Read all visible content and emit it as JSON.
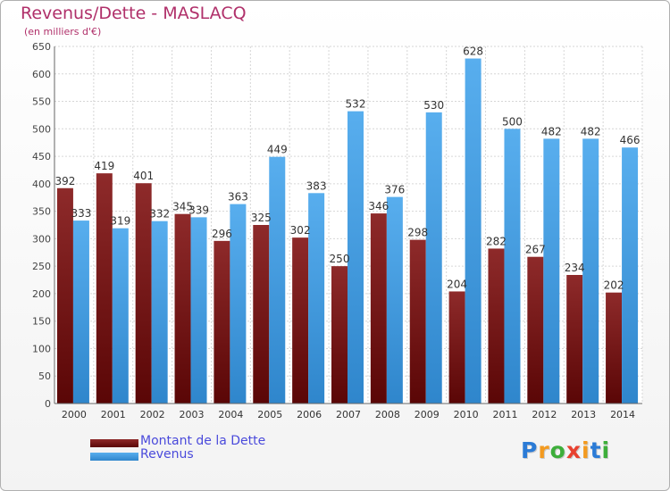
{
  "title": "Revenus/Dette - MASLACQ",
  "subtitle": "(en milliers d'€)",
  "logo": {
    "letters": [
      "P",
      "r",
      "o",
      "x",
      "i",
      "t",
      "i"
    ],
    "colors": [
      "#2b7bd6",
      "#f39a1f",
      "#3dae3a",
      "#e8412f",
      "#f39a1f",
      "#2b7bd6",
      "#3dae3a"
    ]
  },
  "colors": {
    "dette": "#7a1414",
    "revenus": "#4aa3e6",
    "title": "#b0306a",
    "legend_text": "#4a4adb"
  },
  "legend": {
    "dette": "Montant de la Dette",
    "revenus": "Revenus"
  },
  "chart_data": {
    "type": "bar",
    "categories": [
      "2000",
      "2001",
      "2002",
      "2003",
      "2004",
      "2005",
      "2006",
      "2007",
      "2008",
      "2009",
      "2010",
      "2011",
      "2012",
      "2013",
      "2014"
    ],
    "series": [
      {
        "name": "Montant de la Dette",
        "values": [
          392,
          419,
          401,
          345,
          296,
          325,
          302,
          250,
          346,
          298,
          204,
          282,
          267,
          234,
          202
        ]
      },
      {
        "name": "Revenus",
        "values": [
          333,
          319,
          332,
          339,
          363,
          449,
          383,
          532,
          376,
          530,
          628,
          500,
          482,
          482,
          466
        ]
      }
    ],
    "ylim": [
      0,
      650
    ],
    "yticks": [
      0,
      50,
      100,
      150,
      200,
      250,
      300,
      350,
      400,
      450,
      500,
      550,
      600,
      650
    ],
    "grid": true,
    "legend_position": "bottom-left"
  }
}
